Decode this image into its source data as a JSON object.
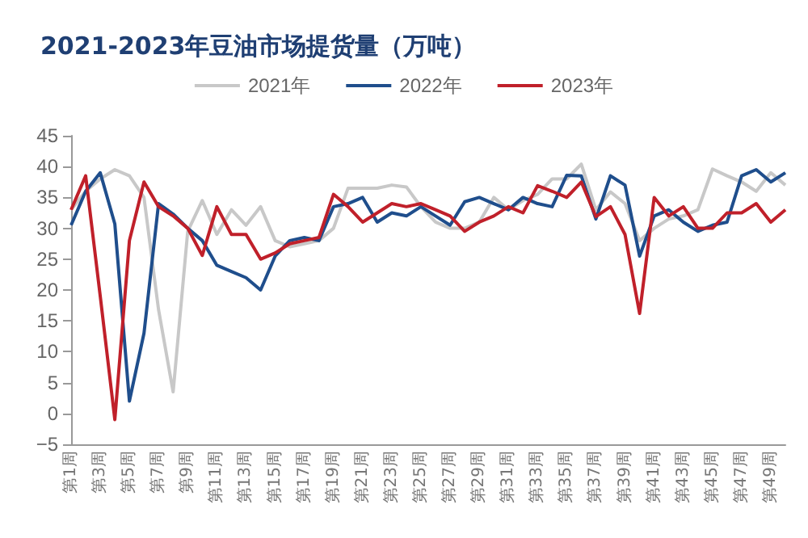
{
  "chart_data": {
    "type": "line",
    "title": "2021-2023年豆油市场提货量（万吨）",
    "categories": [
      "第1周",
      null,
      "第3周",
      null,
      "第5周",
      null,
      "第7周",
      null,
      "第9周",
      null,
      "第11周",
      null,
      "第13周",
      null,
      "第15周",
      null,
      "第17周",
      null,
      "第19周",
      null,
      "第21周",
      null,
      "第23周",
      null,
      "第25周",
      null,
      "第27周",
      null,
      "第29周",
      null,
      "第31周",
      null,
      "第33周",
      null,
      "第35周",
      null,
      "第37周",
      null,
      "第39周",
      null,
      "第41周",
      null,
      "第43周",
      null,
      "第45周",
      null,
      "第47周",
      null,
      "第49周",
      null
    ],
    "series": [
      {
        "name": "2021年",
        "color": "#c8c8c8",
        "values": [
          33,
          36,
          38,
          39.5,
          38.5,
          35,
          16.8,
          3.5,
          29.5,
          34.5,
          29,
          33,
          30.5,
          33.5,
          28,
          27,
          27.5,
          28,
          30,
          36.5,
          36.5,
          36.5,
          37,
          36.7,
          33.5,
          31,
          30,
          30,
          31,
          35,
          33,
          34.5,
          35.5,
          38,
          38,
          40.4,
          33,
          35.9,
          34,
          28,
          30,
          31.5,
          32,
          33,
          39.6,
          38.5,
          37.5,
          36,
          39,
          37
        ]
      },
      {
        "name": "2022年",
        "color": "#1f4e8c",
        "values": [
          30.5,
          36,
          39,
          30.7,
          2,
          13,
          34,
          32.3,
          30,
          28,
          24,
          23,
          22,
          20,
          25.5,
          28,
          28.5,
          28,
          33.5,
          34,
          35,
          31,
          32.5,
          32,
          33.5,
          32,
          30.5,
          34.3,
          35,
          34,
          33,
          35,
          34,
          33.5,
          38.6,
          38.5,
          31.5,
          38.5,
          37,
          25.5,
          32,
          33,
          31,
          29.5,
          30.5,
          31,
          38.5,
          39.5,
          37.5,
          39
        ]
      },
      {
        "name": "2023年",
        "color": "#c0202a",
        "values": [
          33,
          38.5,
          19,
          -1,
          28,
          37.5,
          33.5,
          32,
          30,
          25.6,
          33.5,
          29,
          29,
          25,
          26,
          27.5,
          28,
          28.5,
          35.5,
          33.5,
          31,
          32.5,
          34,
          33.5,
          34,
          33,
          32,
          29.5,
          31,
          32,
          33.5,
          32.5,
          36.9,
          36,
          35,
          37.5,
          31.9,
          33.5,
          29,
          16.2,
          35,
          32,
          33.5,
          30,
          30,
          32.5,
          32.5,
          34,
          31,
          33
        ]
      }
    ],
    "ylim": [
      -5,
      45
    ],
    "yticks": [
      -5,
      0,
      5,
      10,
      15,
      20,
      25,
      30,
      35,
      40,
      45
    ],
    "legend": "top",
    "grid": false,
    "marker": "none",
    "line_style": "solid"
  }
}
